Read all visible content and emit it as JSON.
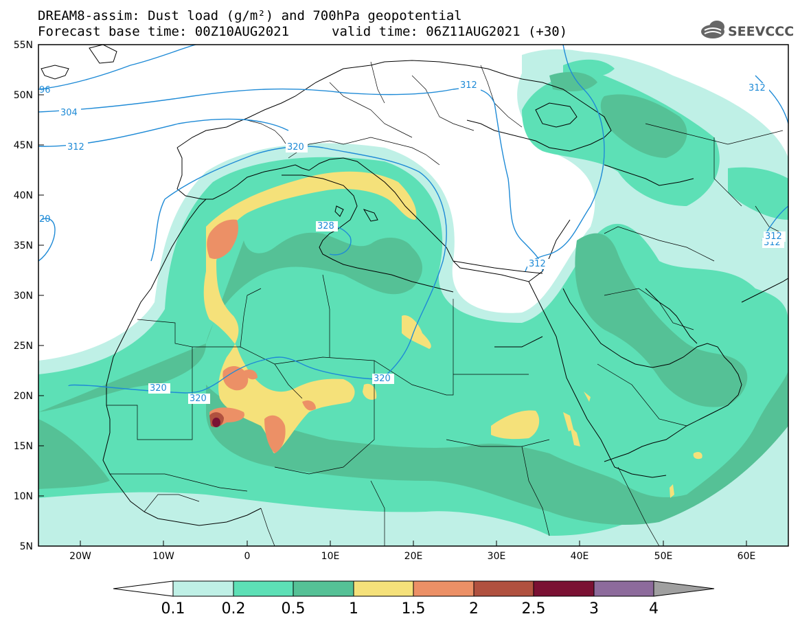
{
  "header": {
    "title_line1": "DREAM8-assim: Dust load (g/m²) and 700hPa geopotential",
    "base_time": "Forecast base time: 00Z10AUG2021",
    "valid_time": "valid time: 06Z11AUG2021 (+30)",
    "logo_text": "SEEVCCC"
  },
  "map": {
    "lon_range": [
      -25,
      65
    ],
    "lat_range": [
      5,
      55
    ],
    "lat_labels": [
      "55N",
      "50N",
      "45N",
      "40N",
      "35N",
      "30N",
      "25N",
      "20N",
      "15N",
      "10N",
      "5N"
    ],
    "lon_labels": [
      "20W",
      "10W",
      "0",
      "10E",
      "20E",
      "30E",
      "40E",
      "50E",
      "60E"
    ],
    "contour_labels": [
      "96",
      "304",
      "312",
      "312",
      "320",
      "20",
      "328",
      "312",
      "312",
      "312",
      "320",
      "320",
      "320",
      "312"
    ]
  },
  "colorbar": {
    "levels": [
      "0.1",
      "0.2",
      "0.5",
      "1",
      "1.5",
      "2",
      "2.5",
      "3",
      "4"
    ],
    "colors": [
      "#bff0e6",
      "#5de0b6",
      "#55c196",
      "#f5e17a",
      "#ec9066",
      "#b0513f",
      "#7a1133",
      "#8d6b9c"
    ]
  },
  "colors": {
    "contour": "#1e8ad6",
    "coast": "#000000"
  }
}
